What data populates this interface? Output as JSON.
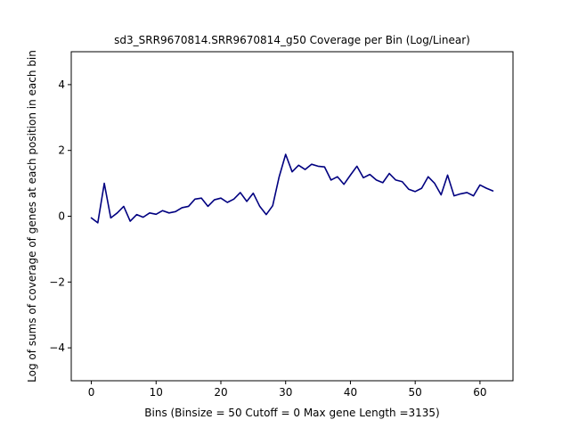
{
  "chart_data": {
    "type": "line",
    "title": "sd3_SRR9670814.SRR9670814_g50 Coverage per Bin (Log/Linear)",
    "xlabel": "Bins  (Binsize = 50 Cutoff = 0 Max gene Length =3135)",
    "ylabel": "Log of sums of coverage of genes at each position in each bin",
    "xlim": [
      -3.1,
      65.1
    ],
    "ylim": [
      -5,
      5
    ],
    "xticks": [
      0,
      10,
      20,
      30,
      40,
      50,
      60
    ],
    "xtick_labels": [
      "0",
      "10",
      "20",
      "30",
      "40",
      "50",
      "60"
    ],
    "yticks": [
      -4,
      -2,
      0,
      2,
      4
    ],
    "ytick_labels": [
      "−4",
      "−2",
      "0",
      "2",
      "4"
    ],
    "grid": false,
    "series": [
      {
        "color": "#000080",
        "x": [
          0,
          1,
          2,
          3,
          4,
          5,
          6,
          7,
          8,
          9,
          10,
          11,
          12,
          13,
          14,
          15,
          16,
          17,
          18,
          19,
          20,
          21,
          22,
          23,
          24,
          25,
          26,
          27,
          28,
          29,
          30,
          31,
          32,
          33,
          34,
          35,
          36,
          37,
          38,
          39,
          40,
          41,
          42,
          43,
          44,
          45,
          46,
          47,
          48,
          49,
          50,
          51,
          52,
          53,
          54,
          55,
          56,
          57,
          58,
          59,
          60,
          61,
          62
        ],
        "y": [
          -0.05,
          -0.2,
          1.0,
          -0.05,
          0.1,
          0.3,
          -0.15,
          0.05,
          -0.03,
          0.1,
          0.06,
          0.17,
          0.1,
          0.14,
          0.26,
          0.3,
          0.52,
          0.55,
          0.3,
          0.5,
          0.55,
          0.42,
          0.52,
          0.72,
          0.45,
          0.7,
          0.3,
          0.05,
          0.32,
          1.2,
          1.88,
          1.35,
          1.55,
          1.42,
          1.58,
          1.52,
          1.5,
          1.1,
          1.2,
          0.97,
          1.25,
          1.52,
          1.17,
          1.27,
          1.1,
          1.02,
          1.3,
          1.1,
          1.05,
          0.82,
          0.75,
          0.85,
          1.2,
          1.0,
          0.65,
          1.25,
          0.62,
          0.68,
          0.72,
          0.62,
          0.95,
          0.85,
          0.77
        ]
      }
    ]
  }
}
